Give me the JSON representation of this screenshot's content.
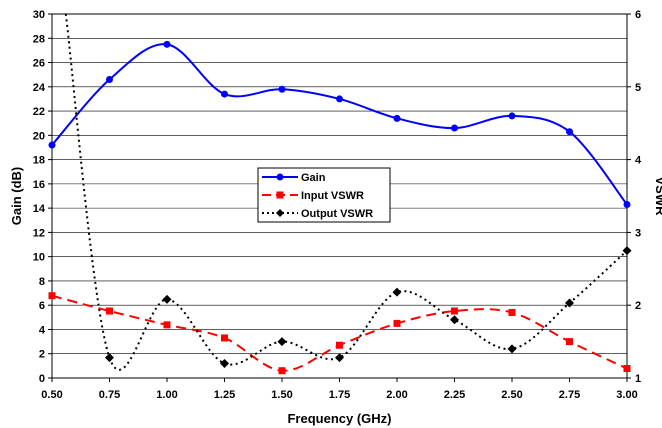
{
  "chart_data": {
    "type": "line",
    "xlabel": "Frequency (GHz)",
    "ylabel": "Gain (dB)",
    "y2label": "VSWR",
    "xlim": [
      0.5,
      3.0
    ],
    "ylim": [
      0,
      30
    ],
    "y2lim": [
      1,
      6
    ],
    "x_ticks": [
      "0.50",
      "0.75",
      "1.00",
      "1.25",
      "1.50",
      "1.75",
      "2.00",
      "2.25",
      "2.50",
      "2.75",
      "3.00"
    ],
    "y_ticks": [
      "0",
      "2",
      "4",
      "6",
      "8",
      "10",
      "12",
      "14",
      "16",
      "18",
      "20",
      "22",
      "24",
      "26",
      "28",
      "30"
    ],
    "y2_ticks": [
      "1",
      "2",
      "3",
      "4",
      "5",
      "6"
    ],
    "grid": "horizontal",
    "legend_placement": "center",
    "series": [
      {
        "name": "Gain",
        "axis": "left",
        "color": "#0000ff",
        "line": "solid",
        "marker": "circle",
        "x": [
          0.5,
          0.75,
          1.0,
          1.25,
          1.5,
          1.75,
          2.0,
          2.25,
          2.5,
          2.75,
          3.0
        ],
        "values": [
          19.2,
          24.6,
          27.5,
          23.4,
          23.8,
          23.0,
          21.4,
          20.6,
          21.6,
          20.3,
          14.3
        ]
      },
      {
        "name": "Input VSWR",
        "axis": "right",
        "color": "#ff0000",
        "line": "dashed",
        "marker": "square",
        "x": [
          0.5,
          0.75,
          1.0,
          1.25,
          1.5,
          1.75,
          2.0,
          2.25,
          2.5,
          2.75,
          3.0
        ],
        "values": [
          2.13,
          1.92,
          1.73,
          1.55,
          1.1,
          1.45,
          1.75,
          1.92,
          1.9,
          1.5,
          1.13
        ]
      },
      {
        "name": "Output VSWR",
        "axis": "right",
        "color": "#000000",
        "line": "dotted",
        "marker": "diamond",
        "x": [
          0.75,
          1.0,
          1.25,
          1.5,
          1.75,
          2.0,
          2.25,
          2.5,
          2.75,
          3.0
        ],
        "values": [
          1.28,
          2.08,
          1.2,
          1.5,
          1.28,
          2.18,
          1.8,
          1.4,
          2.03,
          2.75
        ],
        "offscale_start": {
          "x": 0.56,
          "values": 6.0
        }
      }
    ]
  }
}
